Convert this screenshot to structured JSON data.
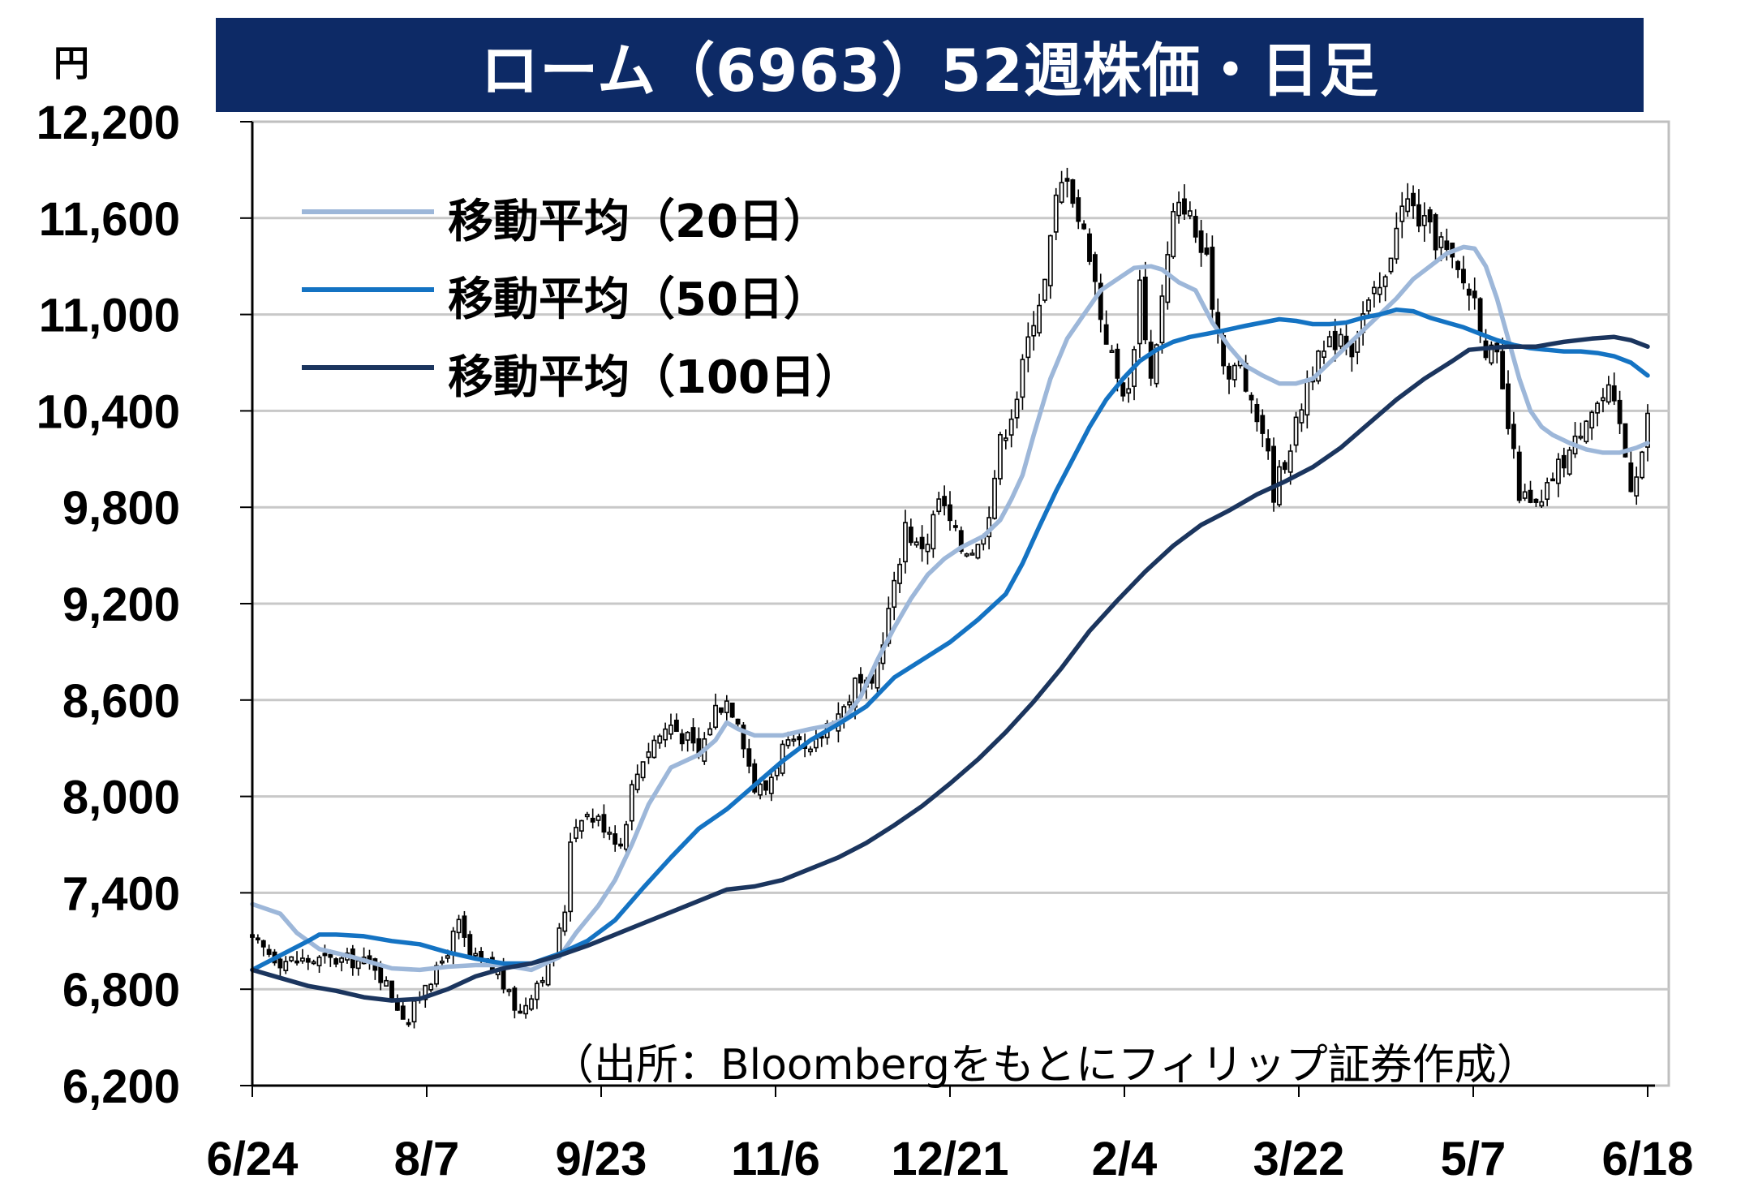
{
  "title": "ローム（6963）52週株価・日足",
  "unit_label": "円",
  "source_note": "（出所：Bloombergをもとにフィリップ証券作成）",
  "colors": {
    "title_bg": "#0d2a66",
    "ma20": "#9db7d9",
    "ma50": "#1473c3",
    "ma100": "#1b355e",
    "candle": "#000000",
    "grid": "#c8c8c8"
  },
  "legend": [
    {
      "label": "移動平均（20日）",
      "series": "ma20"
    },
    {
      "label": "移動平均（50日）",
      "series": "ma50"
    },
    {
      "label": "移動平均（100日）",
      "series": "ma100"
    }
  ],
  "chart_data": {
    "type": "line",
    "xlabel": "",
    "ylabel": "円",
    "ylim": [
      6200,
      12200
    ],
    "y_ticks": [
      6200,
      6800,
      7400,
      8000,
      8600,
      9200,
      9800,
      10400,
      11000,
      11600,
      12200
    ],
    "y_tick_labels": [
      "6,200",
      "6,800",
      "7,400",
      "8,000",
      "8,600",
      "9,200",
      "9,800",
      "10,400",
      "11,000",
      "11,600",
      "12,200"
    ],
    "x_tick_labels": [
      "6/24",
      "8/7",
      "9/23",
      "11/6",
      "12/21",
      "2/4",
      "3/22",
      "5/7",
      "6/18"
    ],
    "x_index_range": [
      0,
      250
    ],
    "grid": true,
    "legend_position": "top-left",
    "close_keyframes": [
      [
        0,
        7100
      ],
      [
        5,
        6980
      ],
      [
        12,
        6980
      ],
      [
        18,
        6980
      ],
      [
        22,
        6950
      ],
      [
        26,
        6700
      ],
      [
        28,
        6600
      ],
      [
        31,
        6850
      ],
      [
        33,
        6900
      ],
      [
        35,
        7050
      ],
      [
        37,
        7200
      ],
      [
        39,
        7000
      ],
      [
        44,
        6900
      ],
      [
        46,
        6750
      ],
      [
        48,
        6650
      ],
      [
        51,
        6850
      ],
      [
        54,
        7000
      ],
      [
        56,
        7300
      ],
      [
        57,
        7750
      ],
      [
        59,
        7900
      ],
      [
        62,
        7850
      ],
      [
        64,
        7800
      ],
      [
        66,
        7700
      ],
      [
        68,
        8050
      ],
      [
        70,
        8250
      ],
      [
        72,
        8350
      ],
      [
        75,
        8450
      ],
      [
        78,
        8350
      ],
      [
        80,
        8250
      ],
      [
        83,
        8550
      ],
      [
        85,
        8600
      ],
      [
        87,
        8500
      ],
      [
        90,
        8050
      ],
      [
        92,
        8050
      ],
      [
        95,
        8300
      ],
      [
        98,
        8300
      ],
      [
        100,
        8250
      ],
      [
        103,
        8450
      ],
      [
        106,
        8550
      ],
      [
        108,
        8700
      ],
      [
        111,
        8650
      ],
      [
        113,
        9000
      ],
      [
        115,
        9300
      ],
      [
        117,
        9700
      ],
      [
        119,
        9550
      ],
      [
        121,
        9600
      ],
      [
        123,
        9850
      ],
      [
        125,
        9700
      ],
      [
        127,
        9550
      ],
      [
        130,
        9550
      ],
      [
        132,
        9800
      ],
      [
        134,
        10200
      ],
      [
        137,
        10500
      ],
      [
        140,
        11000
      ],
      [
        142,
        11200
      ],
      [
        144,
        11700
      ],
      [
        146,
        11900
      ],
      [
        148,
        11600
      ],
      [
        150,
        11400
      ],
      [
        152,
        11000
      ],
      [
        155,
        10600
      ],
      [
        157,
        10500
      ],
      [
        159,
        11200
      ],
      [
        161,
        10600
      ],
      [
        163,
        11100
      ],
      [
        165,
        11600
      ],
      [
        167,
        11700
      ],
      [
        169,
        11500
      ],
      [
        171,
        11300
      ],
      [
        173,
        10900
      ],
      [
        175,
        10600
      ],
      [
        177,
        10700
      ],
      [
        179,
        10400
      ],
      [
        181,
        10300
      ],
      [
        183,
        9900
      ],
      [
        185,
        10100
      ],
      [
        187,
        10300
      ],
      [
        189,
        10600
      ],
      [
        191,
        10700
      ],
      [
        193,
        10800
      ],
      [
        195,
        10900
      ],
      [
        197,
        10800
      ],
      [
        199,
        11000
      ],
      [
        201,
        11100
      ],
      [
        203,
        11200
      ],
      [
        205,
        11600
      ],
      [
        207,
        11700
      ],
      [
        209,
        11600
      ],
      [
        211,
        11500
      ],
      [
        213,
        11450
      ],
      [
        215,
        11300
      ],
      [
        217,
        11200
      ],
      [
        219,
        11100
      ],
      [
        221,
        10800
      ],
      [
        223,
        10700
      ],
      [
        225,
        10300
      ],
      [
        227,
        9900
      ],
      [
        229,
        9800
      ],
      [
        231,
        9800
      ],
      [
        233,
        10000
      ],
      [
        235,
        10100
      ],
      [
        237,
        10200
      ],
      [
        239,
        10400
      ],
      [
        241,
        10450
      ],
      [
        243,
        10500
      ],
      [
        245,
        10300
      ],
      [
        247,
        9950
      ],
      [
        249,
        10150
      ],
      [
        250,
        10350
      ]
    ],
    "series": [
      {
        "name": "移動平均（20日）",
        "key": "ma20",
        "points": [
          [
            0,
            7330
          ],
          [
            5,
            7270
          ],
          [
            8,
            7150
          ],
          [
            12,
            7050
          ],
          [
            18,
            7000
          ],
          [
            22,
            6960
          ],
          [
            25,
            6930
          ],
          [
            30,
            6920
          ],
          [
            35,
            6940
          ],
          [
            40,
            6950
          ],
          [
            45,
            6950
          ],
          [
            50,
            6920
          ],
          [
            55,
            7000
          ],
          [
            58,
            7150
          ],
          [
            62,
            7320
          ],
          [
            65,
            7480
          ],
          [
            68,
            7700
          ],
          [
            71,
            7950
          ],
          [
            75,
            8180
          ],
          [
            80,
            8260
          ],
          [
            83,
            8350
          ],
          [
            85,
            8460
          ],
          [
            87,
            8420
          ],
          [
            90,
            8380
          ],
          [
            95,
            8380
          ],
          [
            100,
            8420
          ],
          [
            103,
            8440
          ],
          [
            106,
            8480
          ],
          [
            109,
            8620
          ],
          [
            112,
            8850
          ],
          [
            115,
            9050
          ],
          [
            118,
            9230
          ],
          [
            121,
            9380
          ],
          [
            124,
            9480
          ],
          [
            127,
            9550
          ],
          [
            131,
            9620
          ],
          [
            134,
            9720
          ],
          [
            136,
            9850
          ],
          [
            138,
            10000
          ],
          [
            140,
            10250
          ],
          [
            143,
            10600
          ],
          [
            146,
            10850
          ],
          [
            149,
            11000
          ],
          [
            152,
            11150
          ],
          [
            155,
            11220
          ],
          [
            158,
            11290
          ],
          [
            161,
            11300
          ],
          [
            163,
            11280
          ],
          [
            166,
            11200
          ],
          [
            169,
            11150
          ],
          [
            172,
            10950
          ],
          [
            175,
            10800
          ],
          [
            178,
            10680
          ],
          [
            181,
            10620
          ],
          [
            184,
            10570
          ],
          [
            187,
            10570
          ],
          [
            190,
            10600
          ],
          [
            193,
            10700
          ],
          [
            196,
            10800
          ],
          [
            199,
            10900
          ],
          [
            202,
            11000
          ],
          [
            205,
            11100
          ],
          [
            208,
            11220
          ],
          [
            211,
            11300
          ],
          [
            214,
            11380
          ],
          [
            217,
            11420
          ],
          [
            219,
            11410
          ],
          [
            221,
            11300
          ],
          [
            223,
            11100
          ],
          [
            225,
            10850
          ],
          [
            227,
            10600
          ],
          [
            229,
            10400
          ],
          [
            231,
            10300
          ],
          [
            233,
            10250
          ],
          [
            236,
            10200
          ],
          [
            239,
            10160
          ],
          [
            242,
            10140
          ],
          [
            245,
            10140
          ],
          [
            248,
            10170
          ],
          [
            250,
            10200
          ]
        ]
      },
      {
        "name": "移動平均（50日）",
        "key": "ma50",
        "points": [
          [
            0,
            6920
          ],
          [
            5,
            7010
          ],
          [
            10,
            7100
          ],
          [
            12,
            7140
          ],
          [
            15,
            7140
          ],
          [
            20,
            7130
          ],
          [
            25,
            7100
          ],
          [
            30,
            7080
          ],
          [
            35,
            7030
          ],
          [
            40,
            6990
          ],
          [
            45,
            6960
          ],
          [
            50,
            6960
          ],
          [
            55,
            7020
          ],
          [
            60,
            7100
          ],
          [
            65,
            7230
          ],
          [
            70,
            7430
          ],
          [
            75,
            7620
          ],
          [
            80,
            7800
          ],
          [
            85,
            7920
          ],
          [
            90,
            8070
          ],
          [
            95,
            8220
          ],
          [
            100,
            8350
          ],
          [
            105,
            8450
          ],
          [
            110,
            8560
          ],
          [
            115,
            8740
          ],
          [
            120,
            8850
          ],
          [
            125,
            8960
          ],
          [
            130,
            9100
          ],
          [
            135,
            9260
          ],
          [
            138,
            9450
          ],
          [
            141,
            9680
          ],
          [
            144,
            9900
          ],
          [
            147,
            10100
          ],
          [
            150,
            10300
          ],
          [
            153,
            10470
          ],
          [
            156,
            10600
          ],
          [
            159,
            10710
          ],
          [
            162,
            10780
          ],
          [
            165,
            10830
          ],
          [
            168,
            10860
          ],
          [
            171,
            10880
          ],
          [
            174,
            10900
          ],
          [
            178,
            10930
          ],
          [
            181,
            10950
          ],
          [
            184,
            10970
          ],
          [
            187,
            10960
          ],
          [
            190,
            10940
          ],
          [
            193,
            10940
          ],
          [
            196,
            10950
          ],
          [
            199,
            10980
          ],
          [
            202,
            11000
          ],
          [
            205,
            11030
          ],
          [
            208,
            11020
          ],
          [
            211,
            10980
          ],
          [
            214,
            10950
          ],
          [
            217,
            10920
          ],
          [
            220,
            10880
          ],
          [
            223,
            10840
          ],
          [
            226,
            10810
          ],
          [
            229,
            10790
          ],
          [
            232,
            10780
          ],
          [
            235,
            10770
          ],
          [
            238,
            10770
          ],
          [
            241,
            10760
          ],
          [
            244,
            10740
          ],
          [
            247,
            10700
          ],
          [
            250,
            10620
          ]
        ]
      },
      {
        "name": "移動平均（100日）",
        "key": "ma100",
        "points": [
          [
            0,
            6920
          ],
          [
            5,
            6870
          ],
          [
            10,
            6820
          ],
          [
            15,
            6790
          ],
          [
            20,
            6750
          ],
          [
            25,
            6730
          ],
          [
            30,
            6740
          ],
          [
            35,
            6800
          ],
          [
            40,
            6880
          ],
          [
            45,
            6930
          ],
          [
            50,
            6960
          ],
          [
            55,
            7010
          ],
          [
            60,
            7070
          ],
          [
            65,
            7140
          ],
          [
            70,
            7210
          ],
          [
            75,
            7280
          ],
          [
            80,
            7350
          ],
          [
            85,
            7420
          ],
          [
            90,
            7440
          ],
          [
            95,
            7480
          ],
          [
            100,
            7550
          ],
          [
            105,
            7620
          ],
          [
            110,
            7710
          ],
          [
            115,
            7820
          ],
          [
            120,
            7940
          ],
          [
            125,
            8080
          ],
          [
            130,
            8230
          ],
          [
            135,
            8400
          ],
          [
            140,
            8590
          ],
          [
            145,
            8800
          ],
          [
            150,
            9030
          ],
          [
            155,
            9220
          ],
          [
            160,
            9400
          ],
          [
            165,
            9560
          ],
          [
            170,
            9690
          ],
          [
            175,
            9780
          ],
          [
            180,
            9880
          ],
          [
            185,
            9960
          ],
          [
            190,
            10050
          ],
          [
            195,
            10170
          ],
          [
            200,
            10320
          ],
          [
            205,
            10470
          ],
          [
            210,
            10600
          ],
          [
            215,
            10710
          ],
          [
            218,
            10780
          ],
          [
            221,
            10790
          ],
          [
            225,
            10800
          ],
          [
            230,
            10800
          ],
          [
            235,
            10830
          ],
          [
            240,
            10850
          ],
          [
            244,
            10860
          ],
          [
            247,
            10840
          ],
          [
            250,
            10800
          ]
        ]
      }
    ]
  }
}
